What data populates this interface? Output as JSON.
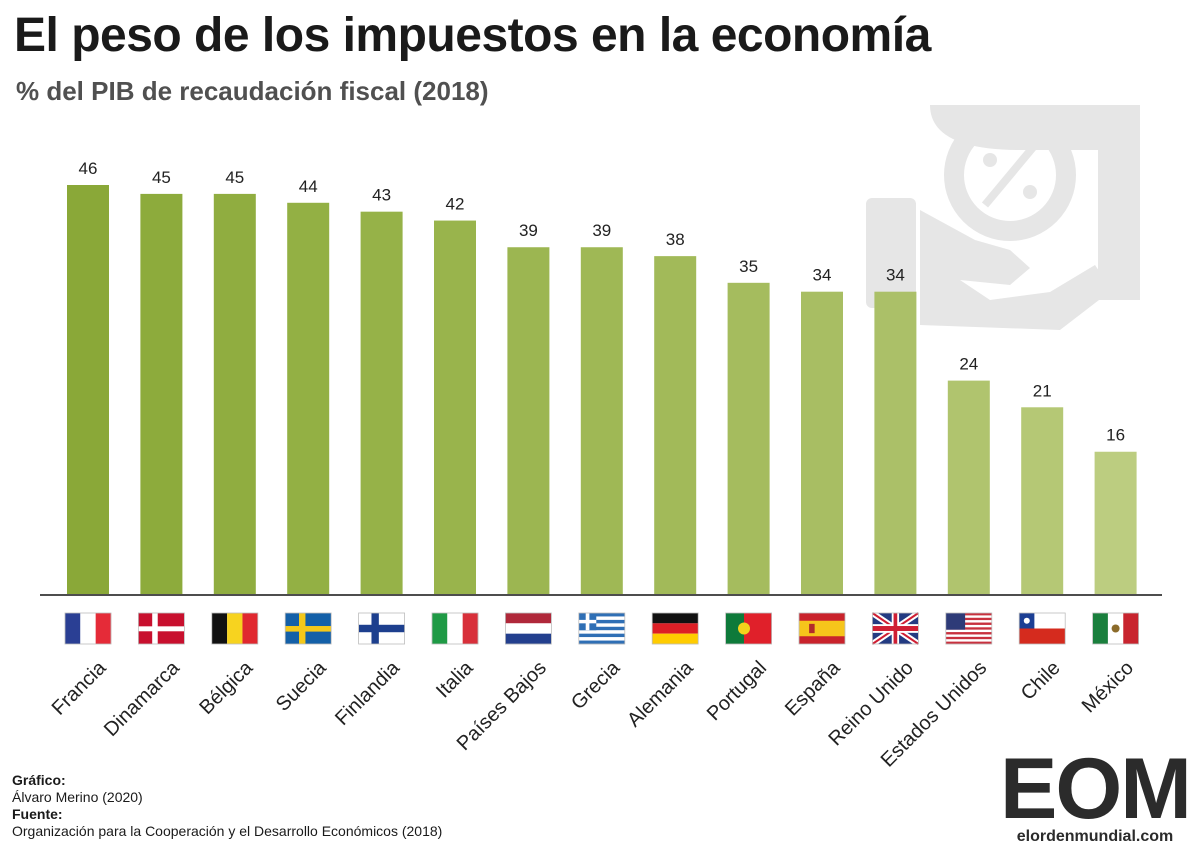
{
  "header": {
    "title": "El peso de los impuestos en la economía",
    "subtitle": "% del PIB de recaudación fiscal (2018)"
  },
  "chart_data": {
    "type": "bar",
    "title": "El peso de los impuestos en la economía",
    "subtitle": "% del PIB de recaudación fiscal (2018)",
    "xlabel": "",
    "ylabel": "",
    "ylim": [
      0,
      46
    ],
    "grid": false,
    "legend": "none",
    "categories": [
      "Francia",
      "Dinamarca",
      "Bélgica",
      "Suecia",
      "Finlandia",
      "Italia",
      "Países Bajos",
      "Grecia",
      "Alemania",
      "Portugal",
      "España",
      "Reino Unido",
      "Estados Unidos",
      "Chile",
      "México"
    ],
    "values": [
      46,
      45,
      45,
      44,
      43,
      42,
      39,
      39,
      38,
      35,
      34,
      34,
      24,
      21,
      16
    ],
    "value_labels": [
      "46",
      "45",
      "45",
      "44",
      "43",
      "42",
      "39",
      "39",
      "38",
      "35",
      "34",
      "34",
      "24",
      "21",
      "16"
    ],
    "bar_colors": [
      "#8aa838",
      "#8dab3c",
      "#90ad40",
      "#93b044",
      "#96b248",
      "#99b44c",
      "#9cb651",
      "#9fb855",
      "#a2ba59",
      "#a5bc5e",
      "#a8be63",
      "#abc068",
      "#b0c46e",
      "#b5c875",
      "#bccd80"
    ],
    "flags": [
      "fr",
      "dk",
      "be",
      "se",
      "fi",
      "it",
      "nl",
      "gr",
      "de",
      "pt",
      "es",
      "gb",
      "us",
      "cl",
      "mx"
    ]
  },
  "credits": {
    "grafico_label": "Gráfico:",
    "grafico_value": "Álvaro Merino (2020)",
    "fuente_label": "Fuente:",
    "fuente_value": "Organización para la Cooperación y el Desarrollo Económicos (2018)"
  },
  "logo": {
    "letters": "EOM",
    "url": "elordenmundial.com"
  },
  "decoration": {
    "icon": "tax-hand-coin-icon",
    "icon_color": "#e6e6e6"
  }
}
